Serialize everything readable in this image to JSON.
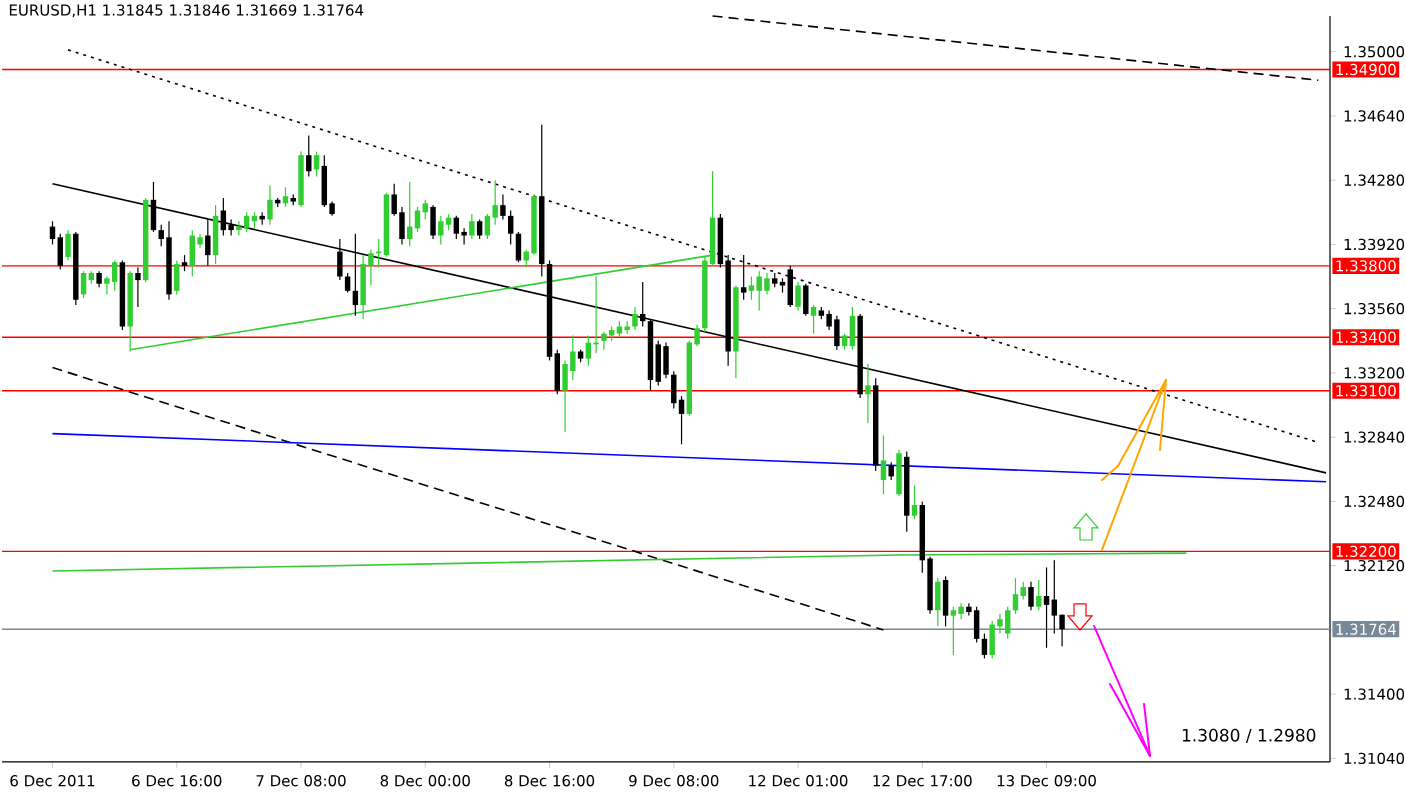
{
  "chart_data": {
    "type": "candlestick",
    "title": "EURUSD,H1  1.31845 1.31846 1.31669 1.31764",
    "categories": [
      "6 Dec 2011",
      null,
      null,
      null,
      null,
      null,
      null,
      null,
      null,
      null,
      null,
      null,
      null,
      null,
      null,
      null,
      "6 Dec 16:00",
      null,
      null,
      null,
      null,
      null,
      null,
      null,
      null,
      null,
      null,
      null,
      null,
      null,
      null,
      null,
      "7 Dec 08:00",
      null,
      null,
      null,
      null,
      null,
      null,
      null,
      null,
      null,
      null,
      null,
      null,
      null,
      null,
      null,
      "8 Dec 00:00",
      null,
      null,
      null,
      null,
      null,
      null,
      null,
      null,
      null,
      null,
      null,
      null,
      null,
      null,
      null,
      "8 Dec 16:00",
      null,
      null,
      null,
      null,
      null,
      null,
      null,
      null,
      null,
      null,
      null,
      null,
      null,
      null,
      null,
      "9 Dec 08:00",
      null,
      null,
      null,
      null,
      null,
      null,
      null,
      null,
      null,
      null,
      null,
      null,
      null,
      null,
      null,
      "12 Dec 01:00",
      null,
      null,
      null,
      null,
      null,
      null,
      null,
      null,
      null,
      null,
      null,
      null,
      null,
      null,
      null,
      "12 Dec 17:00",
      null,
      null,
      null,
      null,
      null,
      null,
      null,
      null,
      null,
      null,
      null,
      null,
      null,
      null,
      null,
      "13 Dec 09:00",
      null,
      null,
      null,
      null,
      null,
      null,
      null,
      null,
      null,
      null,
      null,
      null,
      null,
      null,
      null,
      null,
      null,
      null,
      null,
      null,
      null,
      null,
      null,
      null,
      null,
      null,
      null,
      null,
      null,
      null,
      null,
      null,
      null,
      null,
      null,
      null
    ],
    "ohlc": [
      [
        1.3402,
        1.3405,
        1.3392,
        1.3395
      ],
      [
        1.3396,
        1.3398,
        1.3378,
        1.338
      ],
      [
        1.3385,
        1.34,
        1.3383,
        1.3398
      ],
      [
        1.3398,
        1.3399,
        1.3358,
        1.3361
      ],
      [
        1.3364,
        1.3377,
        1.3362,
        1.3376
      ],
      [
        1.3372,
        1.3377,
        1.337,
        1.3376
      ],
      [
        1.3376,
        1.3377,
        1.3368,
        1.337
      ],
      [
        1.337,
        1.3374,
        1.3364,
        1.3373
      ],
      [
        1.3371,
        1.3383,
        1.3366,
        1.3382
      ],
      [
        1.3382,
        1.3383,
        1.3344,
        1.3346
      ],
      [
        1.3346,
        1.3377,
        1.3332,
        1.3376
      ],
      [
        1.3376,
        1.3379,
        1.3357,
        1.3372
      ],
      [
        1.3372,
        1.3418,
        1.3371,
        1.3417
      ],
      [
        1.3417,
        1.3427,
        1.3399,
        1.34
      ],
      [
        1.34,
        1.3403,
        1.3391,
        1.3395
      ],
      [
        1.3396,
        1.3405,
        1.3361,
        1.3364
      ],
      [
        1.3366,
        1.3383,
        1.3364,
        1.3381
      ],
      [
        1.3382,
        1.3386,
        1.3377,
        1.338
      ],
      [
        1.338,
        1.34,
        1.3374,
        1.3397
      ],
      [
        1.3392,
        1.3398,
        1.339,
        1.3396
      ],
      [
        1.3397,
        1.3406,
        1.338,
        1.3386
      ],
      [
        1.3386,
        1.3414,
        1.3381,
        1.3408
      ],
      [
        1.3411,
        1.3418,
        1.3397,
        1.34
      ],
      [
        1.3403,
        1.3406,
        1.3397,
        1.34
      ],
      [
        1.34,
        1.3405,
        1.3397,
        1.3402
      ],
      [
        1.3401,
        1.341,
        1.3399,
        1.3408
      ],
      [
        1.3405,
        1.341,
        1.3401,
        1.3408
      ],
      [
        1.3408,
        1.341,
        1.3403,
        1.3406
      ],
      [
        1.3406,
        1.3425,
        1.3403,
        1.3417
      ],
      [
        1.3417,
        1.3418,
        1.3413,
        1.3415
      ],
      [
        1.3415,
        1.3424,
        1.3413,
        1.3419
      ],
      [
        1.3418,
        1.342,
        1.3414,
        1.3416
      ],
      [
        1.3414,
        1.3444,
        1.3413,
        1.3442
      ],
      [
        1.3442,
        1.3453,
        1.343,
        1.3433
      ],
      [
        1.3434,
        1.3444,
        1.343,
        1.3442
      ],
      [
        1.3436,
        1.3442,
        1.3413,
        1.3414
      ],
      [
        1.3415,
        1.3416,
        1.3408,
        1.3409
      ],
      [
        1.3388,
        1.3395,
        1.3372,
        1.3374
      ],
      [
        1.3374,
        1.3376,
        1.3365,
        1.3366
      ],
      [
        1.3366,
        1.3398,
        1.3352,
        1.3358
      ],
      [
        1.3358,
        1.3386,
        1.335,
        1.3381
      ],
      [
        1.338,
        1.3389,
        1.3369,
        1.3387
      ],
      [
        1.3387,
        1.3395,
        1.3379,
        1.3388
      ],
      [
        1.3386,
        1.3421,
        1.3385,
        1.342
      ],
      [
        1.342,
        1.3426,
        1.3408,
        1.3409
      ],
      [
        1.341,
        1.3413,
        1.3392,
        1.3395
      ],
      [
        1.3395,
        1.3427,
        1.3391,
        1.3402
      ],
      [
        1.3401,
        1.3413,
        1.3399,
        1.3411
      ],
      [
        1.341,
        1.3417,
        1.3406,
        1.3415
      ],
      [
        1.3413,
        1.3414,
        1.3395,
        1.3397
      ],
      [
        1.3397,
        1.3408,
        1.3392,
        1.3405
      ],
      [
        1.3403,
        1.3409,
        1.34,
        1.3407
      ],
      [
        1.3407,
        1.3408,
        1.3395,
        1.3398
      ],
      [
        1.3399,
        1.3401,
        1.3392,
        1.3397
      ],
      [
        1.3397,
        1.3409,
        1.3395,
        1.3405
      ],
      [
        1.3405,
        1.3406,
        1.3395,
        1.3397
      ],
      [
        1.3397,
        1.3409,
        1.3395,
        1.3408
      ],
      [
        1.3407,
        1.3428,
        1.3403,
        1.3414
      ],
      [
        1.3414,
        1.342,
        1.3406,
        1.3408
      ],
      [
        1.3408,
        1.3411,
        1.3392,
        1.3398
      ],
      [
        1.3398,
        1.3399,
        1.3382,
        1.3383
      ],
      [
        1.3383,
        1.3389,
        1.3379,
        1.3388
      ],
      [
        1.3387,
        1.342,
        1.3386,
        1.3419
      ],
      [
        1.3419,
        1.3459,
        1.3374,
        1.3381
      ],
      [
        1.3381,
        1.3383,
        1.3327,
        1.3329
      ],
      [
        1.3331,
        1.3333,
        1.3308,
        1.331
      ],
      [
        1.331,
        1.3327,
        1.3287,
        1.3325
      ],
      [
        1.3321,
        1.3341,
        1.3316,
        1.3332
      ],
      [
        1.3332,
        1.3333,
        1.3326,
        1.3328
      ],
      [
        1.3328,
        1.3341,
        1.3324,
        1.3337
      ],
      [
        1.3336,
        1.3374,
        1.3331,
        1.3337
      ],
      [
        1.3338,
        1.3343,
        1.3333,
        1.3342
      ],
      [
        1.3341,
        1.3346,
        1.3338,
        1.3344
      ],
      [
        1.3342,
        1.3349,
        1.334,
        1.3346
      ],
      [
        1.3344,
        1.3349,
        1.3342,
        1.3346
      ],
      [
        1.3346,
        1.3357,
        1.3344,
        1.3353
      ],
      [
        1.3353,
        1.3371,
        1.3346,
        1.3349
      ],
      [
        1.3349,
        1.335,
        1.331,
        1.3316
      ],
      [
        1.3336,
        1.3338,
        1.3313,
        1.3315
      ],
      [
        1.3335,
        1.3337,
        1.3317,
        1.3319
      ],
      [
        1.3319,
        1.3321,
        1.33,
        1.3303
      ],
      [
        1.3305,
        1.3307,
        1.328,
        1.3297
      ],
      [
        1.3297,
        1.3338,
        1.3296,
        1.3337
      ],
      [
        1.3336,
        1.3347,
        1.3335,
        1.3345
      ],
      [
        1.3345,
        1.3385,
        1.3343,
        1.3383
      ],
      [
        1.3381,
        1.3433,
        1.338,
        1.3407
      ],
      [
        1.3407,
        1.3409,
        1.3379,
        1.3381
      ],
      [
        1.3383,
        1.3386,
        1.3324,
        1.3332
      ],
      [
        1.3332,
        1.3369,
        1.3317,
        1.3368
      ],
      [
        1.3368,
        1.3386,
        1.3361,
        1.3365
      ],
      [
        1.3366,
        1.3374,
        1.3361,
        1.3369
      ],
      [
        1.3366,
        1.3377,
        1.3355,
        1.3374
      ],
      [
        1.3366,
        1.3376,
        1.3364,
        1.3373
      ],
      [
        1.3373,
        1.3376,
        1.3368,
        1.337
      ],
      [
        1.3371,
        1.3373,
        1.3365,
        1.3369
      ],
      [
        1.3378,
        1.338,
        1.3357,
        1.3358
      ],
      [
        1.3357,
        1.3371,
        1.3355,
        1.3369
      ],
      [
        1.3369,
        1.337,
        1.3352,
        1.3353
      ],
      [
        1.3352,
        1.3358,
        1.3342,
        1.3357
      ],
      [
        1.3355,
        1.3357,
        1.335,
        1.3352
      ],
      [
        1.3353,
        1.3355,
        1.3344,
        1.3346
      ],
      [
        1.335,
        1.3352,
        1.3333,
        1.3335
      ],
      [
        1.3335,
        1.3342,
        1.3333,
        1.3341
      ],
      [
        1.3335,
        1.3357,
        1.3333,
        1.3352
      ],
      [
        1.3352,
        1.3353,
        1.3306,
        1.3308
      ],
      [
        1.3308,
        1.3325,
        1.3292,
        1.3313
      ],
      [
        1.3313,
        1.3317,
        1.3265,
        1.3268
      ],
      [
        1.326,
        1.3285,
        1.3252,
        1.3271
      ],
      [
        1.3268,
        1.327,
        1.326,
        1.3262
      ],
      [
        1.3252,
        1.3277,
        1.3251,
        1.3275
      ],
      [
        1.3273,
        1.3276,
        1.3231,
        1.324
      ],
      [
        1.324,
        1.3257,
        1.3238,
        1.3246
      ],
      [
        1.3246,
        1.3248,
        1.3208,
        1.3215
      ],
      [
        1.3216,
        1.3217,
        1.3185,
        1.3187
      ],
      [
        1.3187,
        1.3205,
        1.3178,
        1.3203
      ],
      [
        1.3204,
        1.3206,
        1.3178,
        1.3184
      ],
      [
        1.3184,
        1.3189,
        1.3162,
        1.3187
      ],
      [
        1.3185,
        1.3191,
        1.3182,
        1.3189
      ],
      [
        1.3189,
        1.3191,
        1.3184,
        1.3186
      ],
      [
        1.3187,
        1.3189,
        1.3169,
        1.3171
      ],
      [
        1.3171,
        1.3174,
        1.316,
        1.3162
      ],
      [
        1.3162,
        1.3181,
        1.316,
        1.3179
      ],
      [
        1.3178,
        1.3185,
        1.3174,
        1.3182
      ],
      [
        1.3174,
        1.3189,
        1.3171,
        1.3187
      ],
      [
        1.3187,
        1.3205,
        1.3185,
        1.3196
      ],
      [
        1.3195,
        1.3203,
        1.3193,
        1.32
      ],
      [
        1.32,
        1.3203,
        1.3187,
        1.3189
      ],
      [
        1.3189,
        1.3204,
        1.3187,
        1.3195
      ],
      [
        1.3195,
        1.3211,
        1.3166,
        1.319
      ],
      [
        1.3193,
        1.3215,
        1.3174,
        1.3184
      ],
      [
        1.31845,
        1.31846,
        1.31669,
        1.31764
      ],
      null,
      null,
      null,
      null,
      null,
      null,
      null,
      null,
      null,
      null,
      null,
      null,
      null,
      null,
      null,
      null,
      null,
      null,
      null,
      null,
      null,
      null,
      null,
      null,
      null,
      null,
      null,
      null,
      null,
      null,
      null,
      null,
      null,
      null
    ],
    "colors": [
      "#000000",
      "#000000",
      "#32cd32",
      "#000000",
      "#32cd32",
      "#32cd32",
      "#000000",
      "#32cd32",
      "#32cd32",
      "#000000",
      "#32cd32",
      "#000000",
      "#32cd32",
      "#000000",
      "#000000",
      "#000000",
      "#32cd32",
      "#000000",
      "#32cd32",
      "#32cd32",
      "#000000",
      "#32cd32",
      "#000000",
      "#000000",
      "#32cd32",
      "#32cd32",
      "#32cd32",
      "#000000",
      "#32cd32",
      "#000000",
      "#32cd32",
      "#000000",
      "#32cd32",
      "#000000",
      "#32cd32",
      "#000000",
      "#000000",
      "#000000",
      "#000000",
      "#000000",
      "#32cd32",
      "#32cd32",
      "#32cd32",
      "#32cd32",
      "#000000",
      "#000000",
      "#32cd32",
      "#32cd32",
      "#32cd32",
      "#000000",
      "#32cd32",
      "#32cd32",
      "#000000",
      "#000000",
      "#32cd32",
      "#000000",
      "#32cd32",
      "#32cd32",
      "#000000",
      "#000000",
      "#000000",
      "#32cd32",
      "#32cd32",
      "#000000",
      "#000000",
      "#000000",
      "#32cd32",
      "#32cd32",
      "#000000",
      "#32cd32",
      "#32cd32",
      "#32cd32",
      "#32cd32",
      "#32cd32",
      "#32cd32",
      "#32cd32",
      "#000000",
      "#000000",
      "#000000",
      "#000000",
      "#000000",
      "#000000",
      "#32cd32",
      "#32cd32",
      "#32cd32",
      "#32cd32",
      "#000000",
      "#000000",
      "#32cd32",
      "#000000",
      "#32cd32",
      "#32cd32",
      "#32cd32",
      "#000000",
      "#000000",
      "#000000",
      "#32cd32",
      "#000000",
      "#32cd32",
      "#000000",
      "#000000",
      "#000000",
      "#32cd32",
      "#32cd32",
      "#000000",
      "#32cd32",
      "#000000",
      "#32cd32",
      "#000000",
      "#32cd32",
      "#000000",
      "#32cd32",
      "#000000",
      "#000000",
      "#32cd32",
      "#000000",
      "#32cd32",
      "#32cd32",
      "#000000",
      "#000000",
      "#000000",
      "#32cd32",
      "#32cd32",
      "#32cd32",
      "#32cd32",
      "#32cd32",
      "#000000",
      "#32cd32",
      "#000000",
      "#000000",
      "#000000",
      null,
      null,
      null,
      null,
      null,
      null,
      null,
      null,
      null,
      null,
      null,
      null,
      null,
      null,
      null,
      null,
      null,
      null,
      null,
      null,
      null,
      null,
      null,
      null,
      null,
      null,
      null,
      null,
      null,
      null,
      null,
      null,
      null,
      null
    ],
    "series": [
      {
        "type": "line",
        "values": [
          null,
          null,
          null,
          null,
          null,
          null,
          null,
          null,
          null,
          null,
          null,
          null,
          null,
          null,
          null,
          null,
          null,
          null,
          null,
          null,
          null,
          null,
          null,
          null,
          null,
          null,
          null,
          null,
          null,
          null,
          null,
          null,
          null,
          null,
          null,
          null,
          null,
          null,
          null,
          null,
          null,
          null,
          null,
          null,
          null,
          null,
          null,
          null,
          null,
          null,
          null,
          null,
          null,
          null,
          null,
          null,
          null,
          null,
          null,
          null,
          null,
          null,
          null,
          null,
          null,
          null,
          null,
          null,
          null,
          null,
          null,
          null,
          null,
          null,
          null,
          null,
          null,
          null,
          null,
          null,
          null,
          null,
          null,
          null,
          null,
          1.352,
          null,
          null,
          null,
          null,
          null,
          null,
          null,
          null,
          null,
          null,
          null,
          null,
          null,
          null,
          null,
          null,
          null,
          null,
          null,
          null,
          null,
          null,
          null,
          null,
          null,
          null,
          null,
          null,
          null,
          null,
          null,
          null,
          null,
          null,
          null,
          null,
          null,
          null,
          null,
          null,
          null,
          null,
          null,
          null,
          null,
          null,
          null,
          null,
          null,
          null,
          null,
          null,
          null,
          null,
          null,
          null,
          null,
          null,
          null,
          null,
          null,
          null,
          null,
          null,
          null,
          null,
          null,
          null,
          null,
          null,
          null,
          null,
          null,
          null,
          null,
          null,
          null,
          1.3484,
          null
        ],
        "color": "#000000",
        "line_style": "dashed"
      },
      {
        "type": "line",
        "values": [
          null,
          null,
          1.3501,
          null,
          null,
          null,
          null,
          null,
          null,
          null,
          null,
          null,
          null,
          null,
          null,
          null,
          null,
          null,
          null,
          null,
          null,
          null,
          null,
          null,
          null,
          null,
          null,
          null,
          null,
          null,
          null,
          null,
          null,
          null,
          null,
          null,
          null,
          null,
          null,
          null,
          null,
          null,
          null,
          null,
          null,
          null,
          null,
          null,
          null,
          null,
          null,
          null,
          null,
          null,
          null,
          null,
          null,
          null,
          null,
          null,
          null,
          null,
          null,
          null,
          null,
          null,
          null,
          null,
          null,
          null,
          null,
          null,
          null,
          null,
          null,
          null,
          null,
          null,
          null,
          null,
          null,
          null,
          null,
          null,
          null,
          null,
          null,
          null,
          null,
          null,
          null,
          null,
          null,
          null,
          null,
          null,
          null,
          null,
          null,
          null,
          null,
          null,
          null,
          null,
          null,
          null,
          null,
          null,
          null,
          null,
          null,
          null,
          null,
          null,
          null,
          null,
          null,
          null,
          null,
          null,
          null,
          null,
          null,
          null,
          null,
          null,
          null,
          null,
          null,
          null,
          null,
          null,
          null,
          null,
          null,
          null,
          null,
          null,
          null,
          null,
          null,
          null,
          null,
          null,
          null,
          null,
          null,
          null,
          null,
          null,
          null,
          null,
          null,
          null,
          null,
          null,
          null,
          null,
          null,
          null,
          null,
          null,
          null,
          1.3281,
          null
        ],
        "color": "#000000",
        "line_style": "dotted"
      },
      {
        "type": "line",
        "values": [
          1.3323,
          null,
          null,
          null,
          null,
          null,
          null,
          null,
          null,
          null,
          null,
          null,
          null,
          null,
          null,
          null,
          null,
          null,
          null,
          null,
          null,
          null,
          null,
          null,
          null,
          null,
          null,
          null,
          null,
          null,
          null,
          null,
          null,
          null,
          null,
          null,
          null,
          null,
          null,
          null,
          null,
          null,
          null,
          null,
          null,
          null,
          null,
          null,
          null,
          null,
          null,
          null,
          null,
          null,
          null,
          null,
          null,
          null,
          null,
          null,
          null,
          null,
          null,
          null,
          null,
          null,
          null,
          null,
          null,
          null,
          null,
          null,
          null,
          null,
          null,
          null,
          null,
          null,
          null,
          null,
          null,
          null,
          null,
          null,
          null,
          null,
          null,
          null,
          null,
          null,
          null,
          null,
          null,
          null,
          null,
          null,
          null,
          null,
          null,
          null,
          null,
          null,
          null,
          null,
          null,
          null,
          null,
          1.3176,
          null,
          null,
          null,
          null,
          null,
          null,
          null,
          null,
          null,
          null,
          null,
          null,
          null,
          null,
          null,
          null,
          null,
          null,
          null,
          null,
          null,
          null,
          null,
          null,
          null,
          null,
          null,
          null,
          null,
          null,
          null,
          null,
          null,
          null,
          null,
          null,
          null,
          null,
          null,
          null,
          null,
          null,
          null,
          null,
          null,
          null,
          null,
          null,
          null,
          null,
          null,
          null,
          null,
          null,
          null,
          null,
          null
        ],
        "color": "#000000",
        "line_style": "dashed"
      },
      {
        "type": "line",
        "values": [
          1.3426,
          null,
          null,
          null,
          null,
          null,
          null,
          null,
          null,
          null,
          null,
          null,
          null,
          null,
          null,
          null,
          null,
          null,
          null,
          null,
          null,
          null,
          null,
          null,
          null,
          null,
          null,
          null,
          null,
          null,
          null,
          null,
          null,
          null,
          null,
          null,
          null,
          null,
          null,
          null,
          null,
          null,
          null,
          null,
          null,
          null,
          null,
          null,
          null,
          null,
          null,
          null,
          null,
          null,
          null,
          null,
          null,
          null,
          null,
          null,
          null,
          null,
          null,
          null,
          null,
          null,
          null,
          null,
          null,
          null,
          null,
          null,
          null,
          null,
          null,
          null,
          null,
          null,
          null,
          null,
          null,
          null,
          null,
          null,
          null,
          null,
          null,
          null,
          null,
          null,
          null,
          null,
          null,
          null,
          null,
          null,
          null,
          null,
          null,
          null,
          null,
          null,
          null,
          null,
          null,
          null,
          null,
          null,
          null,
          null,
          null,
          null,
          null,
          null,
          null,
          null,
          null,
          null,
          null,
          null,
          null,
          null,
          null,
          null,
          null,
          null,
          null,
          null,
          null,
          null,
          null,
          null,
          null,
          null,
          null,
          null,
          null,
          null,
          null,
          null,
          null,
          null,
          null,
          null,
          null,
          null,
          null,
          null,
          null,
          null,
          null,
          null,
          null,
          null,
          null,
          null,
          null,
          null,
          null,
          null,
          null,
          null,
          null,
          null,
          1.3264
        ],
        "color": "#000000",
        "line_style": "solid"
      },
      {
        "type": "line",
        "values": [
          1.3286,
          null,
          null,
          null,
          null,
          null,
          null,
          null,
          null,
          null,
          null,
          null,
          null,
          null,
          null,
          null,
          null,
          null,
          null,
          null,
          null,
          null,
          null,
          null,
          null,
          null,
          null,
          null,
          null,
          null,
          null,
          null,
          null,
          null,
          null,
          null,
          null,
          null,
          null,
          null,
          null,
          null,
          null,
          null,
          null,
          null,
          null,
          null,
          null,
          null,
          null,
          null,
          null,
          null,
          null,
          null,
          null,
          null,
          null,
          null,
          null,
          null,
          null,
          null,
          null,
          null,
          null,
          null,
          null,
          null,
          null,
          null,
          null,
          null,
          null,
          null,
          null,
          null,
          null,
          null,
          null,
          null,
          null,
          null,
          null,
          null,
          null,
          null,
          null,
          null,
          null,
          null,
          null,
          null,
          null,
          null,
          null,
          null,
          null,
          null,
          null,
          null,
          null,
          null,
          null,
          null,
          null,
          null,
          null,
          null,
          null,
          null,
          null,
          null,
          null,
          null,
          null,
          null,
          null,
          null,
          null,
          null,
          null,
          null,
          null,
          null,
          null,
          null,
          null,
          null,
          null,
          null,
          null,
          null,
          null,
          null,
          null,
          null,
          null,
          null,
          null,
          null,
          null,
          null,
          null,
          null,
          null,
          null,
          null,
          null,
          null,
          null,
          null,
          null,
          null,
          null,
          null,
          null,
          null,
          null,
          null,
          null,
          null,
          null,
          1.3259
        ],
        "color": "#0000ff",
        "line_style": "solid"
      },
      {
        "type": "line",
        "values": [
          null,
          null,
          null,
          null,
          null,
          null,
          null,
          null,
          null,
          null,
          1.3333,
          null,
          null,
          null,
          null,
          null,
          null,
          null,
          null,
          null,
          null,
          null,
          null,
          null,
          null,
          null,
          null,
          null,
          null,
          null,
          null,
          null,
          null,
          null,
          null,
          null,
          null,
          null,
          null,
          null,
          null,
          null,
          null,
          null,
          null,
          null,
          null,
          null,
          null,
          null,
          null,
          null,
          null,
          null,
          null,
          null,
          null,
          null,
          null,
          null,
          null,
          null,
          null,
          null,
          null,
          null,
          null,
          null,
          null,
          null,
          null,
          null,
          null,
          null,
          null,
          null,
          null,
          null,
          null,
          null,
          null,
          null,
          null,
          null,
          null,
          1.3386,
          null,
          null,
          null,
          null,
          null,
          null,
          null,
          null,
          null,
          null,
          null,
          null,
          null,
          null,
          null,
          null,
          null,
          null,
          null,
          null,
          null,
          null,
          null,
          null,
          null,
          null,
          null,
          null,
          null,
          null,
          null,
          null,
          null,
          null,
          null,
          null,
          null,
          null,
          null,
          null,
          null,
          null,
          null,
          null,
          null,
          null,
          null,
          null,
          null,
          null,
          null,
          null,
          null,
          null,
          null,
          null,
          null,
          null,
          null,
          null,
          null,
          null,
          null,
          null,
          null,
          null,
          null,
          null,
          null,
          null,
          null,
          null,
          null,
          null,
          null,
          null,
          null,
          null,
          null
        ],
        "color": "#32cd32",
        "line_style": "solid"
      },
      {
        "type": "line",
        "values": [
          1.3209,
          null,
          null,
          null,
          null,
          null,
          null,
          null,
          null,
          null,
          null,
          null,
          null,
          null,
          null,
          null,
          null,
          null,
          null,
          null,
          null,
          null,
          null,
          null,
          null,
          null,
          null,
          null,
          null,
          null,
          null,
          null,
          null,
          null,
          null,
          null,
          null,
          null,
          null,
          null,
          null,
          null,
          null,
          null,
          null,
          null,
          null,
          null,
          null,
          null,
          null,
          null,
          null,
          null,
          null,
          null,
          null,
          null,
          null,
          null,
          null,
          null,
          null,
          null,
          null,
          null,
          null,
          null,
          null,
          null,
          null,
          null,
          null,
          null,
          null,
          null,
          null,
          null,
          null,
          null,
          null,
          null,
          null,
          null,
          null,
          null,
          null,
          null,
          null,
          null,
          null,
          null,
          null,
          null,
          null,
          null,
          null,
          null,
          null,
          null,
          null,
          null,
          null,
          null,
          null,
          null,
          null,
          null,
          null,
          1.3218,
          null,
          null,
          null,
          null,
          null,
          null,
          null,
          null,
          null,
          null,
          null,
          null,
          null,
          null,
          null,
          null,
          null,
          null,
          null,
          null,
          null,
          null,
          null,
          null,
          null,
          null,
          null,
          null,
          null,
          null,
          null,
          null,
          null,
          null,
          null,
          null,
          1.3219,
          null,
          null,
          null,
          null,
          null,
          null,
          null,
          null,
          null,
          null,
          null,
          null,
          null,
          null,
          null,
          null,
          null,
          null
        ],
        "color": "#32cd32",
        "line_style": "solid"
      }
    ],
    "ylim": [
      1.3102,
      1.352
    ],
    "yticks": [
      {
        "value": 1.3104,
        "label": "1.31040"
      },
      {
        "value": 1.314,
        "label": "1.31400"
      },
      {
        "value": 1.3176,
        "label": null
      },
      {
        "value": 1.3212,
        "label": "1.32120"
      },
      {
        "value": 1.3248,
        "label": "1.32480"
      },
      {
        "value": 1.3284,
        "label": "1.32840"
      },
      {
        "value": 1.332,
        "label": "1.33200"
      },
      {
        "value": 1.3356,
        "label": "1.33560"
      },
      {
        "value": 1.3392,
        "label": "1.33920"
      },
      {
        "value": 1.3428,
        "label": "1.34280"
      },
      {
        "value": 1.3464,
        "label": "1.34640"
      },
      {
        "value": 1.35,
        "label": "1.35000"
      }
    ],
    "ref_lines": [
      {
        "axis": "y",
        "value": 1.349,
        "label": "1.34900",
        "color": "#ff0000"
      },
      {
        "axis": "y",
        "value": 1.338,
        "label": "1.33800",
        "color": "#ff0000"
      },
      {
        "axis": "y",
        "value": 1.334,
        "label": "1.33400",
        "color": "#ff0000"
      },
      {
        "axis": "y",
        "value": 1.331,
        "label": "1.33100",
        "color": "#ff0000"
      },
      {
        "axis": "y",
        "value": 1.322,
        "label": "1.32200",
        "color": "#ff0000"
      },
      {
        "axis": "y",
        "value": 1.31764,
        "label": "1.31764",
        "color": "#778899"
      }
    ],
    "annotations": [
      "1.3080 / 1.2980"
    ]
  }
}
